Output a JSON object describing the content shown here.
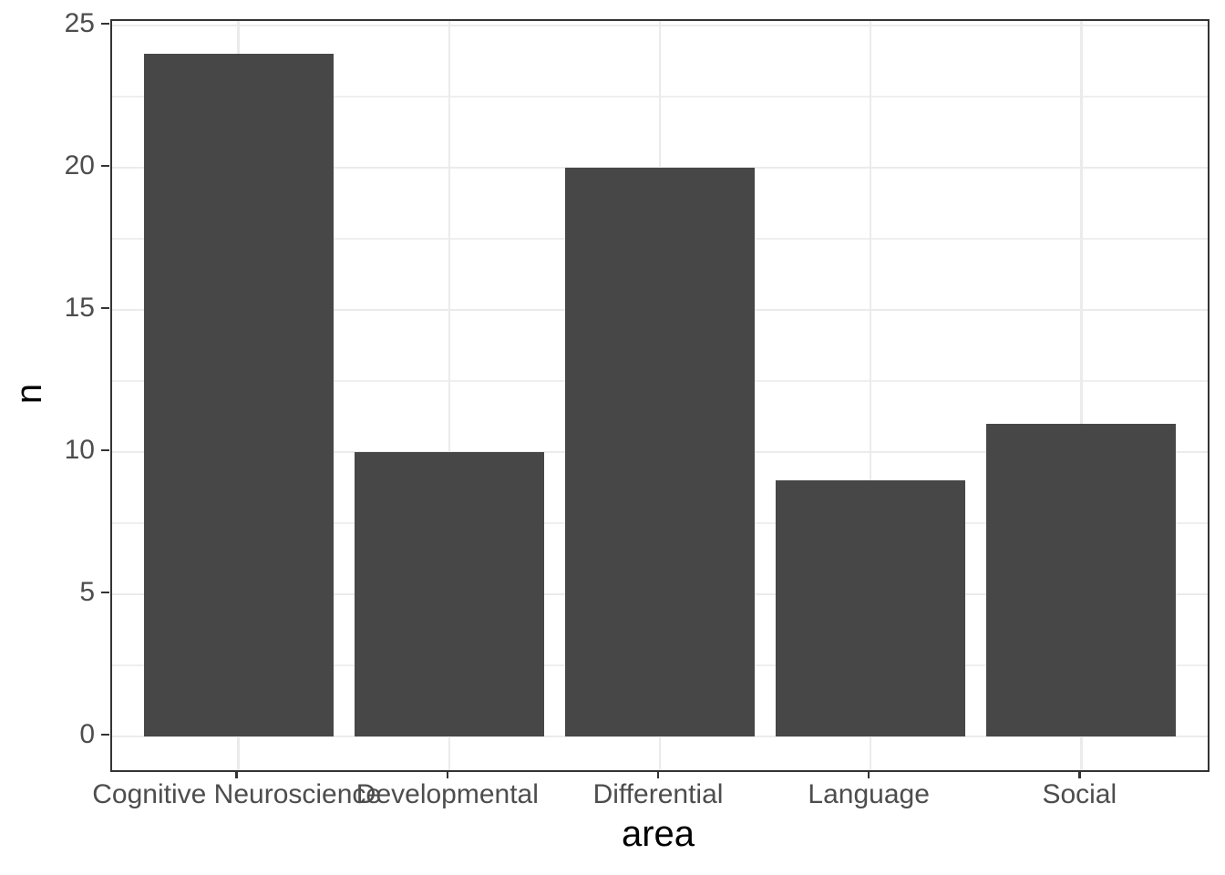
{
  "chart_data": {
    "type": "bar",
    "title": "",
    "categories": [
      "Cognitive Neuroscience",
      "Developmental",
      "Differential",
      "Language",
      "Social"
    ],
    "values": [
      24,
      10,
      20,
      9,
      11
    ],
    "xlabel": "area",
    "ylabel": "n",
    "ylim": [
      -1.2,
      25.2
    ],
    "yticks_major": [
      0,
      5,
      10,
      15,
      20,
      25
    ],
    "yticks_minor": [
      2.5,
      7.5,
      12.5,
      17.5,
      22.5
    ],
    "ytick_labels": [
      "0",
      "5",
      "10",
      "15",
      "20",
      "25"
    ],
    "grid": "on",
    "legend_position": "none",
    "bar_color": "#474747",
    "grid_major_color": "#EBEBEB",
    "grid_minor_color": "#EFEFEF",
    "panel_border_color": "#333333",
    "tick_mark_color": "#333333",
    "axis_text_color": "#4D4D4D",
    "axis_title_color": "#000000",
    "background_color": "#FFFFFF"
  }
}
